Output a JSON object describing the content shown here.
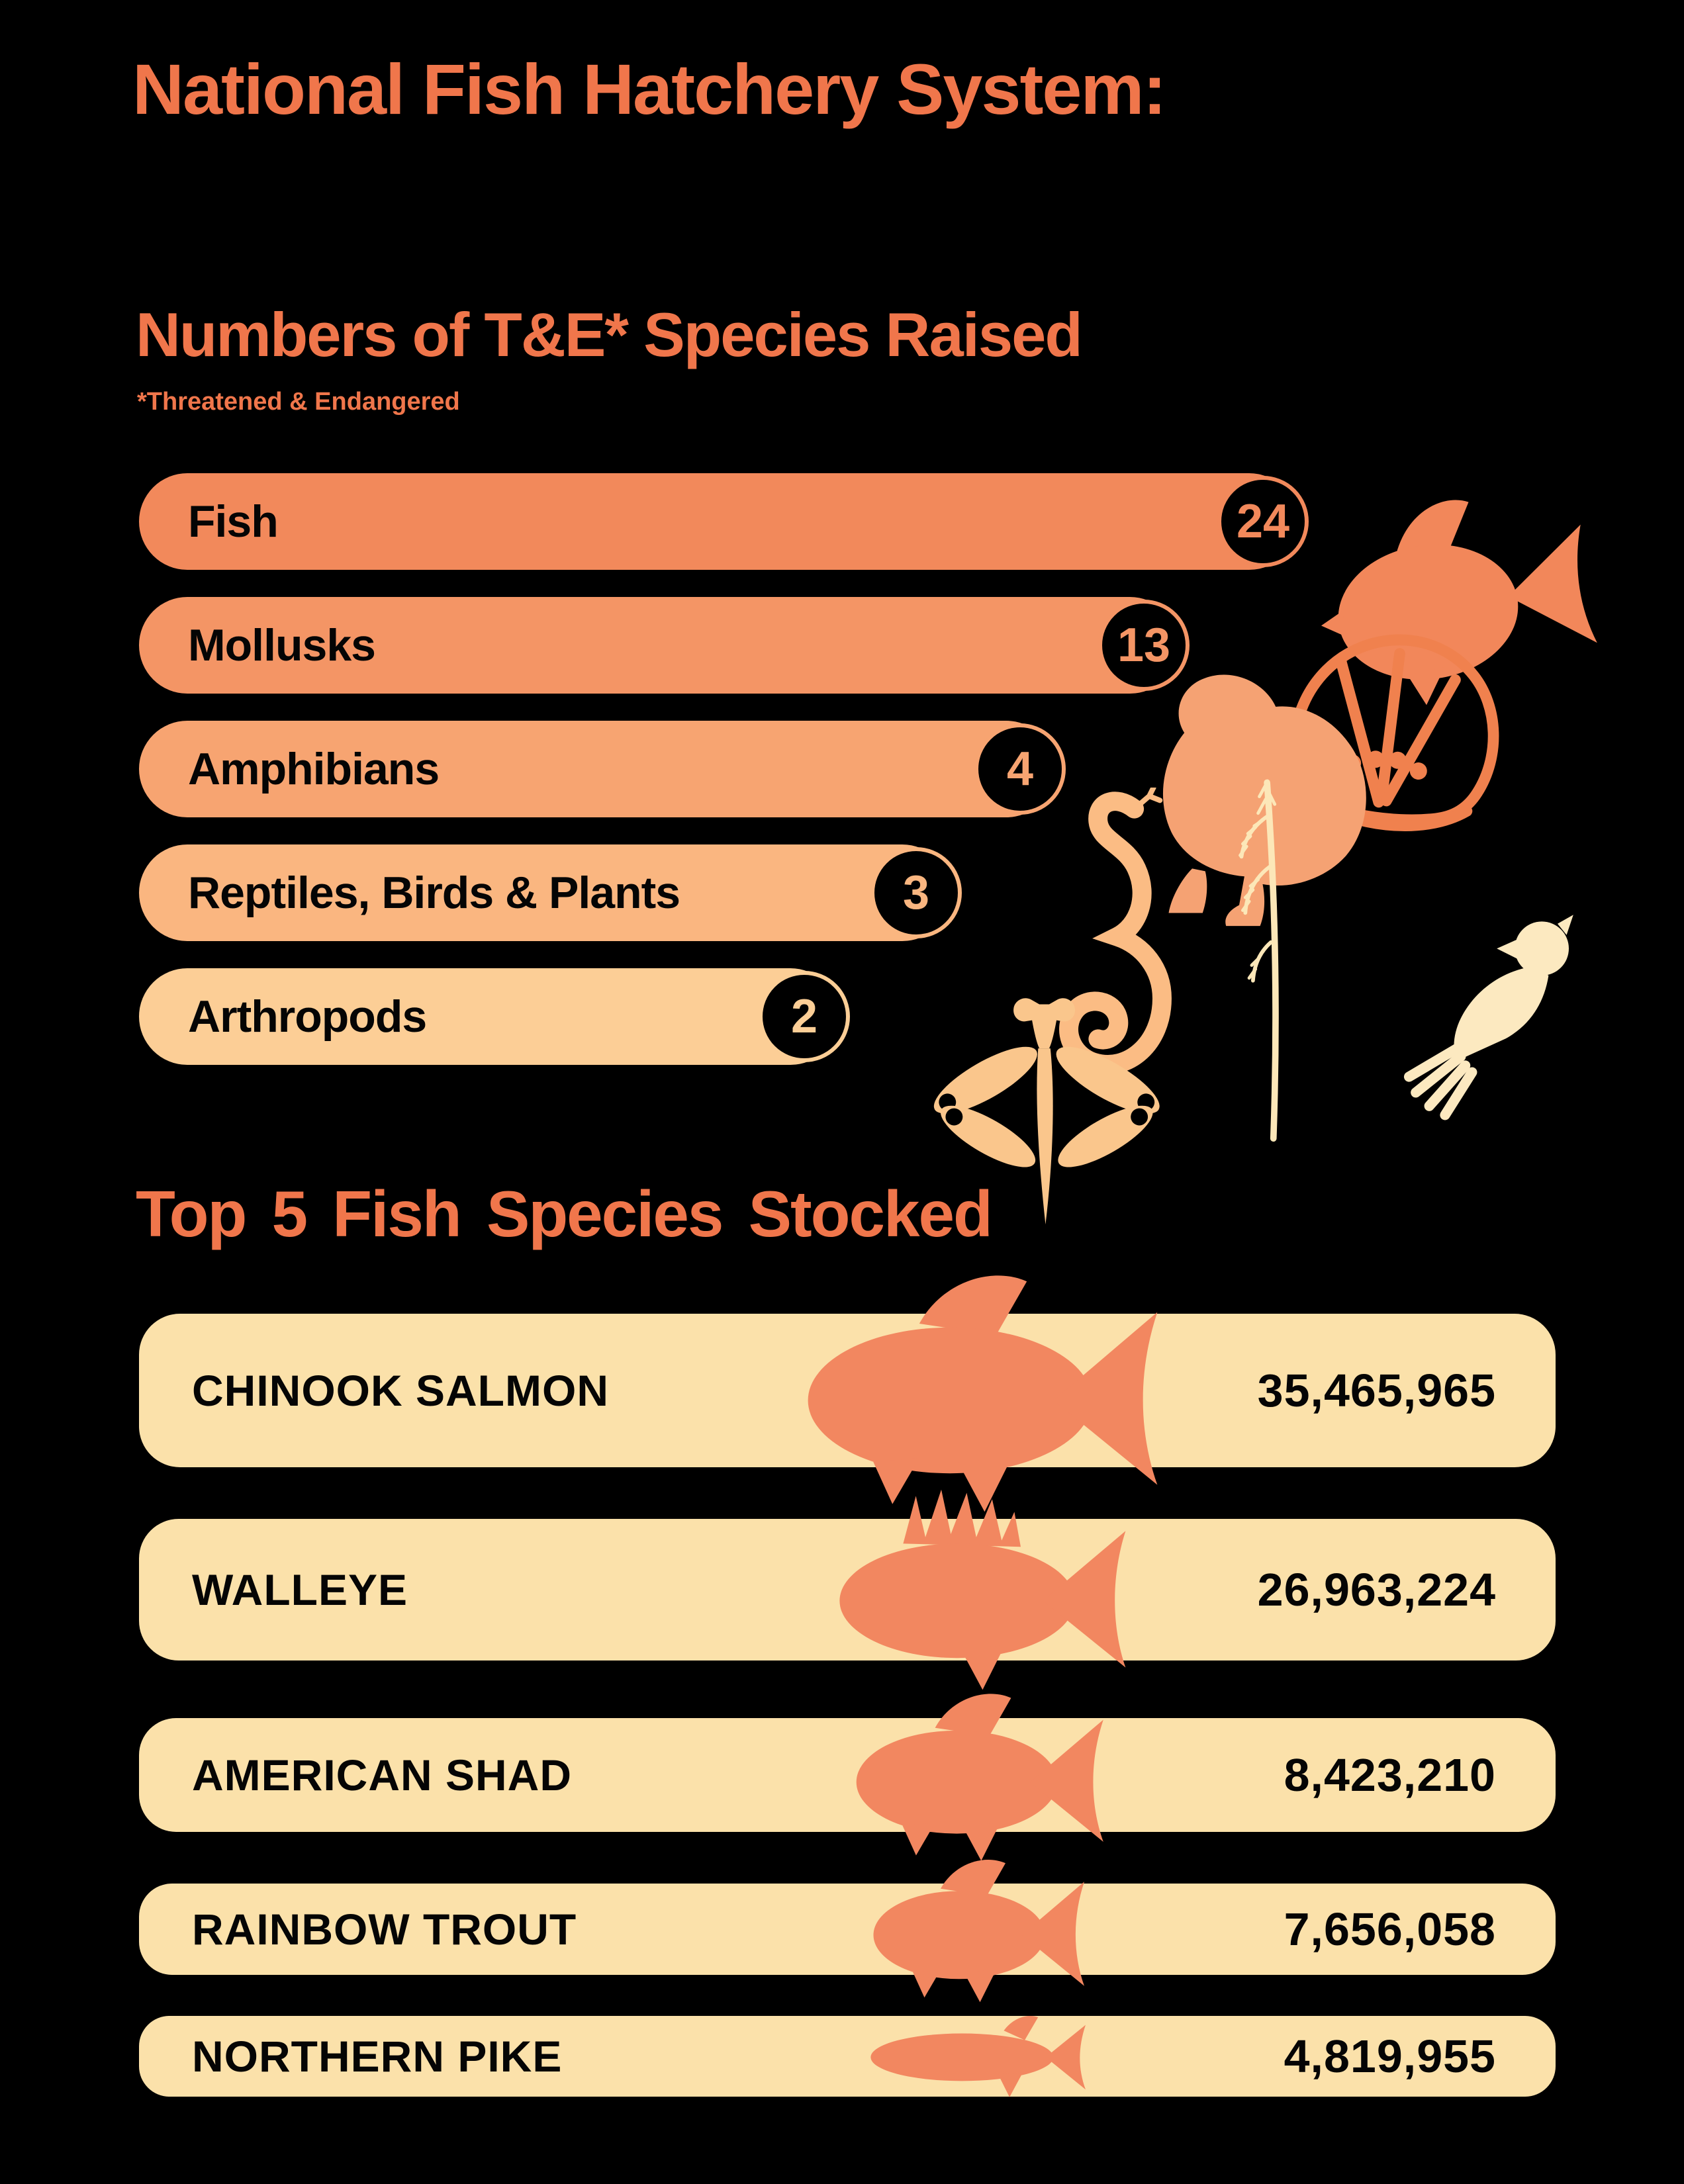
{
  "header": {
    "title": "National Fish Hatchery System:"
  },
  "te_section": {
    "heading": "Numbers of T&E* Species Raised",
    "footnote": "*Threatened & Endangered"
  },
  "stocked_section": {
    "heading": "Top 5 Fish Species Stocked"
  },
  "chart_data": [
    {
      "type": "bar",
      "orientation": "horizontal",
      "title": "Numbers of T&E* Species Raised",
      "subtitle_note": "*Threatened & Endangered",
      "categories": [
        "Fish",
        "Mollusks",
        "Amphibians",
        "Reptiles, Birds & Plants",
        "Arthropods"
      ],
      "values": [
        24,
        13,
        4,
        3,
        2
      ],
      "bar_colors": [
        "#F2895B",
        "#F49565",
        "#F7A471",
        "#FAB680",
        "#FCCE96"
      ],
      "value_badge": "number in black circle at right end of bar",
      "grid": false,
      "legend": false
    },
    {
      "type": "bar",
      "orientation": "horizontal",
      "title": "Top 5 Fish Species Stocked",
      "categories": [
        "CHINOOK SALMON",
        "WALLEYE",
        "AMERICAN SHAD",
        "RAINBOW TROUT",
        "NORTHERN PIKE"
      ],
      "values": [
        35465965,
        26963224,
        8423210,
        7656058,
        4819955
      ],
      "value_labels": [
        "35,465,965",
        "26,963,224",
        "8,423,210",
        "7,656,058",
        "4,819,955"
      ],
      "row_color": "#FBE1AA",
      "fish_icon_color": "#F28760",
      "fish_icons": [
        "chinook-salmon-icon",
        "walleye-icon",
        "american-shad-icon",
        "rainbow-trout-icon",
        "northern-pike-icon"
      ],
      "grid": false,
      "legend": false
    }
  ],
  "decorative_icons": {
    "fish": "fish-icon",
    "scallop": "scallop-shell-icon",
    "frog": "frog-icon",
    "snake": "snake-icon",
    "plant": "grass-plant-icon",
    "bird": "bird-icon",
    "dragonfly": "dragonfly-icon"
  },
  "colors": {
    "background": "#000000",
    "accent_orange": "#F0764B",
    "cream": "#FBE1AA",
    "text_black": "#050505",
    "silhouette_fish": "#F2875A",
    "silhouette_scallop": "#F0814E",
    "silhouette_frog": "#F5A273",
    "silhouette_snake": "#FBBC84",
    "silhouette_plant": "#FCE7B8",
    "silhouette_bird": "#FCE9C0",
    "silhouette_dragonfly": "#FAC68C"
  }
}
